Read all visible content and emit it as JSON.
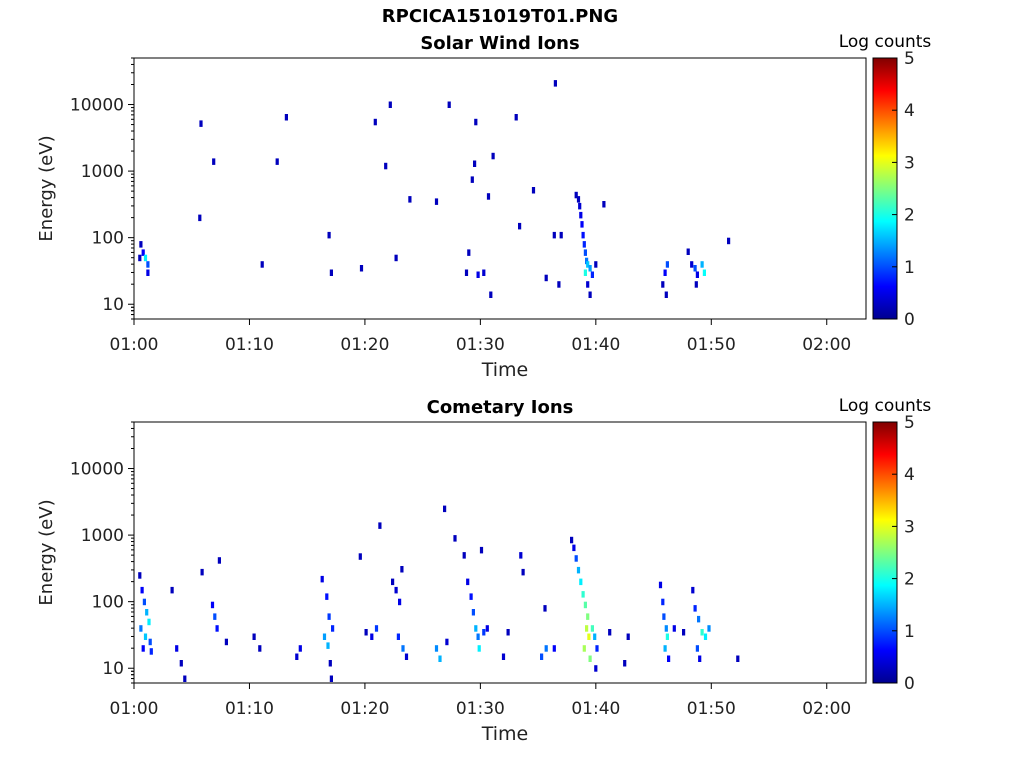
{
  "figure_title": "RPCICA151019T01.PNG",
  "chart_data": [
    {
      "type": "heatmap",
      "title": "Solar Wind Ions",
      "xlabel": "Time",
      "ylabel": "Energy (eV)",
      "xlim": [
        "01:00",
        "02:03"
      ],
      "x_ticks": [
        "01:00",
        "01:10",
        "01:20",
        "01:30",
        "01:40",
        "01:50",
        "02:00"
      ],
      "y_scale": "log",
      "ylim": [
        6,
        50000
      ],
      "y_ticks": [
        "10",
        "100",
        "1000",
        "10000"
      ],
      "colorbar": {
        "label": "Log counts",
        "range": [
          0,
          5
        ],
        "ticks": [
          "0",
          "1",
          "2",
          "3",
          "4",
          "5"
        ],
        "colormap": "jet"
      },
      "grid": false,
      "cells": [
        {
          "t": 0.6,
          "e": 80,
          "v": 0.3
        },
        {
          "t": 0.8,
          "e": 60,
          "v": 0.6
        },
        {
          "t": 1.0,
          "e": 50,
          "v": 1.8
        },
        {
          "t": 1.2,
          "e": 40,
          "v": 1.0
        },
        {
          "t": 1.2,
          "e": 30,
          "v": 0.5
        },
        {
          "t": 0.5,
          "e": 50,
          "v": 0.3
        },
        {
          "t": 5.7,
          "e": 200,
          "v": 0.3
        },
        {
          "t": 5.8,
          "e": 5200,
          "v": 0.3
        },
        {
          "t": 6.9,
          "e": 1400,
          "v": 0.3
        },
        {
          "t": 11.1,
          "e": 40,
          "v": 0.3
        },
        {
          "t": 12.4,
          "e": 1400,
          "v": 0.3
        },
        {
          "t": 13.2,
          "e": 6500,
          "v": 0.3
        },
        {
          "t": 16.9,
          "e": 110,
          "v": 0.3
        },
        {
          "t": 17.1,
          "e": 30,
          "v": 0.3
        },
        {
          "t": 19.7,
          "e": 35,
          "v": 0.3
        },
        {
          "t": 20.9,
          "e": 5500,
          "v": 0.3
        },
        {
          "t": 21.8,
          "e": 1200,
          "v": 0.3
        },
        {
          "t": 22.2,
          "e": 10000,
          "v": 0.3
        },
        {
          "t": 22.7,
          "e": 50,
          "v": 0.3
        },
        {
          "t": 23.9,
          "e": 380,
          "v": 0.3
        },
        {
          "t": 26.2,
          "e": 350,
          "v": 0.3
        },
        {
          "t": 27.3,
          "e": 10000,
          "v": 0.3
        },
        {
          "t": 28.8,
          "e": 30,
          "v": 0.3
        },
        {
          "t": 29.0,
          "e": 60,
          "v": 0.3
        },
        {
          "t": 29.3,
          "e": 750,
          "v": 0.3
        },
        {
          "t": 29.6,
          "e": 5500,
          "v": 0.3
        },
        {
          "t": 29.5,
          "e": 1300,
          "v": 0.3
        },
        {
          "t": 29.8,
          "e": 28,
          "v": 0.5
        },
        {
          "t": 30.3,
          "e": 30,
          "v": 0.4
        },
        {
          "t": 30.7,
          "e": 420,
          "v": 0.3
        },
        {
          "t": 30.9,
          "e": 14,
          "v": 0.3
        },
        {
          "t": 31.1,
          "e": 1700,
          "v": 0.3
        },
        {
          "t": 33.1,
          "e": 6500,
          "v": 0.3
        },
        {
          "t": 33.4,
          "e": 150,
          "v": 0.3
        },
        {
          "t": 34.6,
          "e": 520,
          "v": 0.3
        },
        {
          "t": 35.7,
          "e": 25,
          "v": 0.3
        },
        {
          "t": 36.4,
          "e": 110,
          "v": 0.3
        },
        {
          "t": 36.5,
          "e": 21000,
          "v": 0.3
        },
        {
          "t": 36.8,
          "e": 20,
          "v": 0.3
        },
        {
          "t": 37.0,
          "e": 110,
          "v": 0.3
        },
        {
          "t": 38.3,
          "e": 440,
          "v": 0.3
        },
        {
          "t": 38.5,
          "e": 380,
          "v": 0.3
        },
        {
          "t": 38.6,
          "e": 300,
          "v": 0.4
        },
        {
          "t": 38.7,
          "e": 220,
          "v": 0.5
        },
        {
          "t": 38.8,
          "e": 160,
          "v": 0.6
        },
        {
          "t": 38.9,
          "e": 110,
          "v": 0.7
        },
        {
          "t": 39.0,
          "e": 80,
          "v": 0.8
        },
        {
          "t": 39.1,
          "e": 60,
          "v": 1.0
        },
        {
          "t": 39.2,
          "e": 45,
          "v": 1.2
        },
        {
          "t": 39.1,
          "e": 30,
          "v": 2.0
        },
        {
          "t": 39.3,
          "e": 40,
          "v": 1.6
        },
        {
          "t": 39.3,
          "e": 20,
          "v": 0.4
        },
        {
          "t": 39.5,
          "e": 35,
          "v": 1.4
        },
        {
          "t": 39.7,
          "e": 28,
          "v": 0.8
        },
        {
          "t": 39.5,
          "e": 14,
          "v": 0.3
        },
        {
          "t": 40.0,
          "e": 40,
          "v": 0.3
        },
        {
          "t": 40.7,
          "e": 320,
          "v": 0.3
        },
        {
          "t": 45.8,
          "e": 20,
          "v": 0.3
        },
        {
          "t": 46.0,
          "e": 30,
          "v": 0.6
        },
        {
          "t": 46.2,
          "e": 40,
          "v": 1.0
        },
        {
          "t": 46.1,
          "e": 14,
          "v": 0.3
        },
        {
          "t": 48.0,
          "e": 62,
          "v": 0.3
        },
        {
          "t": 48.3,
          "e": 40,
          "v": 0.4
        },
        {
          "t": 48.6,
          "e": 35,
          "v": 1.0
        },
        {
          "t": 48.8,
          "e": 28,
          "v": 0.5
        },
        {
          "t": 49.2,
          "e": 40,
          "v": 1.5
        },
        {
          "t": 49.4,
          "e": 30,
          "v": 1.9
        },
        {
          "t": 48.7,
          "e": 20,
          "v": 0.3
        },
        {
          "t": 51.5,
          "e": 90,
          "v": 0.3
        }
      ]
    },
    {
      "type": "heatmap",
      "title": "Cometary Ions",
      "xlabel": "Time",
      "ylabel": "Energy (eV)",
      "xlim": [
        "01:00",
        "02:03"
      ],
      "x_ticks": [
        "01:00",
        "01:10",
        "01:20",
        "01:30",
        "01:40",
        "01:50",
        "02:00"
      ],
      "y_scale": "log",
      "ylim": [
        6,
        50000
      ],
      "y_ticks": [
        "10",
        "100",
        "1000",
        "10000"
      ],
      "colorbar": {
        "label": "Log counts",
        "range": [
          0,
          5
        ],
        "ticks": [
          "0",
          "1",
          "2",
          "3",
          "4",
          "5"
        ],
        "colormap": "jet"
      },
      "grid": false,
      "cells": [
        {
          "t": 0.5,
          "e": 250,
          "v": 0.3
        },
        {
          "t": 0.7,
          "e": 150,
          "v": 0.6
        },
        {
          "t": 0.9,
          "e": 100,
          "v": 1.0
        },
        {
          "t": 1.1,
          "e": 70,
          "v": 1.5
        },
        {
          "t": 1.3,
          "e": 50,
          "v": 1.8
        },
        {
          "t": 0.6,
          "e": 40,
          "v": 1.2
        },
        {
          "t": 1.0,
          "e": 30,
          "v": 1.6
        },
        {
          "t": 1.4,
          "e": 25,
          "v": 1.0
        },
        {
          "t": 0.8,
          "e": 20,
          "v": 0.6
        },
        {
          "t": 1.5,
          "e": 18,
          "v": 0.8
        },
        {
          "t": 3.3,
          "e": 150,
          "v": 0.3
        },
        {
          "t": 3.7,
          "e": 20,
          "v": 0.5
        },
        {
          "t": 4.1,
          "e": 12,
          "v": 0.3
        },
        {
          "t": 4.4,
          "e": 7,
          "v": 0.3
        },
        {
          "t": 5.9,
          "e": 280,
          "v": 0.3
        },
        {
          "t": 6.8,
          "e": 90,
          "v": 0.6
        },
        {
          "t": 7.0,
          "e": 60,
          "v": 1.0
        },
        {
          "t": 7.2,
          "e": 40,
          "v": 0.7
        },
        {
          "t": 7.4,
          "e": 420,
          "v": 0.3
        },
        {
          "t": 8.0,
          "e": 25,
          "v": 0.3
        },
        {
          "t": 10.4,
          "e": 30,
          "v": 0.3
        },
        {
          "t": 10.9,
          "e": 20,
          "v": 0.3
        },
        {
          "t": 14.1,
          "e": 15,
          "v": 0.4
        },
        {
          "t": 14.4,
          "e": 20,
          "v": 0.5
        },
        {
          "t": 16.3,
          "e": 220,
          "v": 0.5
        },
        {
          "t": 16.7,
          "e": 120,
          "v": 0.7
        },
        {
          "t": 16.9,
          "e": 60,
          "v": 0.9
        },
        {
          "t": 16.5,
          "e": 30,
          "v": 1.4
        },
        {
          "t": 16.8,
          "e": 22,
          "v": 1.5
        },
        {
          "t": 17.2,
          "e": 40,
          "v": 0.8
        },
        {
          "t": 17.0,
          "e": 12,
          "v": 0.3
        },
        {
          "t": 17.1,
          "e": 7,
          "v": 0.3
        },
        {
          "t": 19.6,
          "e": 480,
          "v": 0.3
        },
        {
          "t": 20.1,
          "e": 35,
          "v": 0.3
        },
        {
          "t": 20.6,
          "e": 30,
          "v": 0.5
        },
        {
          "t": 21.0,
          "e": 40,
          "v": 0.9
        },
        {
          "t": 21.3,
          "e": 1400,
          "v": 0.3
        },
        {
          "t": 22.4,
          "e": 200,
          "v": 0.3
        },
        {
          "t": 22.7,
          "e": 150,
          "v": 0.4
        },
        {
          "t": 23.0,
          "e": 100,
          "v": 0.5
        },
        {
          "t": 23.2,
          "e": 310,
          "v": 0.3
        },
        {
          "t": 22.9,
          "e": 30,
          "v": 0.8
        },
        {
          "t": 23.3,
          "e": 20,
          "v": 1.2
        },
        {
          "t": 23.6,
          "e": 15,
          "v": 0.4
        },
        {
          "t": 26.2,
          "e": 20,
          "v": 1.3
        },
        {
          "t": 26.5,
          "e": 14,
          "v": 1.5
        },
        {
          "t": 26.9,
          "e": 2500,
          "v": 0.3
        },
        {
          "t": 27.1,
          "e": 25,
          "v": 0.4
        },
        {
          "t": 27.8,
          "e": 900,
          "v": 0.3
        },
        {
          "t": 28.6,
          "e": 500,
          "v": 0.3
        },
        {
          "t": 28.9,
          "e": 200,
          "v": 0.5
        },
        {
          "t": 29.2,
          "e": 120,
          "v": 0.7
        },
        {
          "t": 29.4,
          "e": 70,
          "v": 1.0
        },
        {
          "t": 29.6,
          "e": 40,
          "v": 1.5
        },
        {
          "t": 29.8,
          "e": 30,
          "v": 1.2
        },
        {
          "t": 29.9,
          "e": 20,
          "v": 1.8
        },
        {
          "t": 30.3,
          "e": 35,
          "v": 0.9
        },
        {
          "t": 30.6,
          "e": 40,
          "v": 0.5
        },
        {
          "t": 30.1,
          "e": 600,
          "v": 0.3
        },
        {
          "t": 32.0,
          "e": 15,
          "v": 0.4
        },
        {
          "t": 32.4,
          "e": 35,
          "v": 0.3
        },
        {
          "t": 33.5,
          "e": 500,
          "v": 0.4
        },
        {
          "t": 33.7,
          "e": 280,
          "v": 0.3
        },
        {
          "t": 35.3,
          "e": 15,
          "v": 1.0
        },
        {
          "t": 35.7,
          "e": 20,
          "v": 1.2
        },
        {
          "t": 35.6,
          "e": 80,
          "v": 0.3
        },
        {
          "t": 36.4,
          "e": 20,
          "v": 0.6
        },
        {
          "t": 37.9,
          "e": 850,
          "v": 0.3
        },
        {
          "t": 38.1,
          "e": 650,
          "v": 0.5
        },
        {
          "t": 38.3,
          "e": 450,
          "v": 1.0
        },
        {
          "t": 38.5,
          "e": 300,
          "v": 1.5
        },
        {
          "t": 38.7,
          "e": 200,
          "v": 1.8
        },
        {
          "t": 38.9,
          "e": 130,
          "v": 2.1
        },
        {
          "t": 39.1,
          "e": 90,
          "v": 2.3
        },
        {
          "t": 39.3,
          "e": 60,
          "v": 2.5
        },
        {
          "t": 39.2,
          "e": 40,
          "v": 2.8
        },
        {
          "t": 39.4,
          "e": 30,
          "v": 3.0
        },
        {
          "t": 39.0,
          "e": 20,
          "v": 2.7
        },
        {
          "t": 39.5,
          "e": 14,
          "v": 2.5
        },
        {
          "t": 39.7,
          "e": 40,
          "v": 2.2
        },
        {
          "t": 39.9,
          "e": 30,
          "v": 1.5
        },
        {
          "t": 40.1,
          "e": 20,
          "v": 0.8
        },
        {
          "t": 40.0,
          "e": 10,
          "v": 0.4
        },
        {
          "t": 41.2,
          "e": 35,
          "v": 0.3
        },
        {
          "t": 42.5,
          "e": 12,
          "v": 0.3
        },
        {
          "t": 42.8,
          "e": 30,
          "v": 0.3
        },
        {
          "t": 45.6,
          "e": 180,
          "v": 0.5
        },
        {
          "t": 45.8,
          "e": 100,
          "v": 0.8
        },
        {
          "t": 45.9,
          "e": 60,
          "v": 1.0
        },
        {
          "t": 46.1,
          "e": 40,
          "v": 1.3
        },
        {
          "t": 46.2,
          "e": 30,
          "v": 2.0
        },
        {
          "t": 46.0,
          "e": 20,
          "v": 1.5
        },
        {
          "t": 46.3,
          "e": 14,
          "v": 0.6
        },
        {
          "t": 46.8,
          "e": 40,
          "v": 0.5
        },
        {
          "t": 47.6,
          "e": 35,
          "v": 0.3
        },
        {
          "t": 48.4,
          "e": 150,
          "v": 0.4
        },
        {
          "t": 48.6,
          "e": 80,
          "v": 0.8
        },
        {
          "t": 48.9,
          "e": 55,
          "v": 1.2
        },
        {
          "t": 49.2,
          "e": 35,
          "v": 2.1
        },
        {
          "t": 49.5,
          "e": 30,
          "v": 1.8
        },
        {
          "t": 49.8,
          "e": 40,
          "v": 1.3
        },
        {
          "t": 48.8,
          "e": 20,
          "v": 1.0
        },
        {
          "t": 49.0,
          "e": 14,
          "v": 0.5
        },
        {
          "t": 52.3,
          "e": 14,
          "v": 0.3
        }
      ]
    }
  ]
}
